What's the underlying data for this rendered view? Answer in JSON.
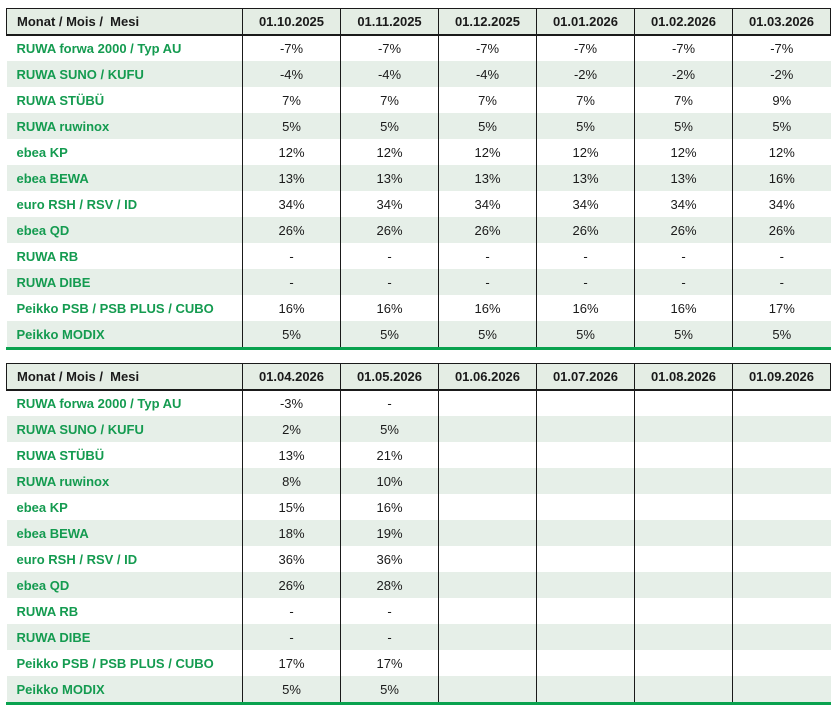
{
  "colors": {
    "green_text": "#149b50",
    "header_bg": "#e4ede4",
    "row_alt_bg": "#e6efe8",
    "border_dark": "#1a1a1a",
    "bottom_line": "#0aa24f"
  },
  "tables": [
    {
      "header_label": "Monat / Mois /  Mesi",
      "months": [
        "01.10.2025",
        "01.11.2025",
        "01.12.2025",
        "01.01.2026",
        "01.02.2026",
        "01.03.2026"
      ],
      "rows": [
        {
          "label": "RUWA forwa 2000 / Typ AU",
          "values": [
            "-7%",
            "-7%",
            "-7%",
            "-7%",
            "-7%",
            "-7%"
          ]
        },
        {
          "label": "RUWA SUNO / KUFU",
          "values": [
            "-4%",
            "-4%",
            "-4%",
            "-2%",
            "-2%",
            "-2%"
          ]
        },
        {
          "label": "RUWA STÜBÜ",
          "values": [
            "7%",
            "7%",
            "7%",
            "7%",
            "7%",
            "9%"
          ]
        },
        {
          "label": "RUWA ruwinox",
          "values": [
            "5%",
            "5%",
            "5%",
            "5%",
            "5%",
            "5%"
          ]
        },
        {
          "label": "ebea KP",
          "values": [
            "12%",
            "12%",
            "12%",
            "12%",
            "12%",
            "12%"
          ]
        },
        {
          "label": "ebea BEWA",
          "values": [
            "13%",
            "13%",
            "13%",
            "13%",
            "13%",
            "16%"
          ]
        },
        {
          "label": "euro RSH / RSV / ID",
          "values": [
            "34%",
            "34%",
            "34%",
            "34%",
            "34%",
            "34%"
          ]
        },
        {
          "label": "ebea QD",
          "values": [
            "26%",
            "26%",
            "26%",
            "26%",
            "26%",
            "26%"
          ]
        },
        {
          "label": "RUWA RB",
          "values": [
            "-",
            "-",
            "-",
            "-",
            "-",
            "-"
          ]
        },
        {
          "label": "RUWA DIBE",
          "values": [
            "-",
            "-",
            "-",
            "-",
            "-",
            "-"
          ]
        },
        {
          "label": "Peikko PSB / PSB PLUS / CUBO",
          "values": [
            "16%",
            "16%",
            "16%",
            "16%",
            "16%",
            "17%"
          ]
        },
        {
          "label": "Peikko MODIX",
          "values": [
            "5%",
            "5%",
            "5%",
            "5%",
            "5%",
            "5%"
          ]
        }
      ]
    },
    {
      "header_label": "Monat / Mois /  Mesi",
      "months": [
        "01.04.2026",
        "01.05.2026",
        "01.06.2026",
        "01.07.2026",
        "01.08.2026",
        "01.09.2026"
      ],
      "rows": [
        {
          "label": "RUWA forwa 2000 / Typ AU",
          "values": [
            "-3%",
            "-",
            "",
            "",
            "",
            ""
          ]
        },
        {
          "label": "RUWA SUNO / KUFU",
          "values": [
            "2%",
            "5%",
            "",
            "",
            "",
            ""
          ]
        },
        {
          "label": "RUWA STÜBÜ",
          "values": [
            "13%",
            "21%",
            "",
            "",
            "",
            ""
          ]
        },
        {
          "label": "RUWA ruwinox",
          "values": [
            "8%",
            "10%",
            "",
            "",
            "",
            ""
          ]
        },
        {
          "label": "ebea KP",
          "values": [
            "15%",
            "16%",
            "",
            "",
            "",
            ""
          ]
        },
        {
          "label": "ebea BEWA",
          "values": [
            "18%",
            "19%",
            "",
            "",
            "",
            ""
          ]
        },
        {
          "label": "euro RSH / RSV / ID",
          "values": [
            "36%",
            "36%",
            "",
            "",
            "",
            ""
          ]
        },
        {
          "label": "ebea QD",
          "values": [
            "26%",
            "28%",
            "",
            "",
            "",
            ""
          ]
        },
        {
          "label": "RUWA RB",
          "values": [
            "-",
            "-",
            "",
            "",
            "",
            ""
          ]
        },
        {
          "label": "RUWA DIBE",
          "values": [
            "-",
            "-",
            "",
            "",
            "",
            ""
          ]
        },
        {
          "label": "Peikko PSB / PSB PLUS / CUBO",
          "values": [
            "17%",
            "17%",
            "",
            "",
            "",
            ""
          ]
        },
        {
          "label": "Peikko MODIX",
          "values": [
            "5%",
            "5%",
            "",
            "",
            "",
            ""
          ]
        }
      ]
    }
  ]
}
